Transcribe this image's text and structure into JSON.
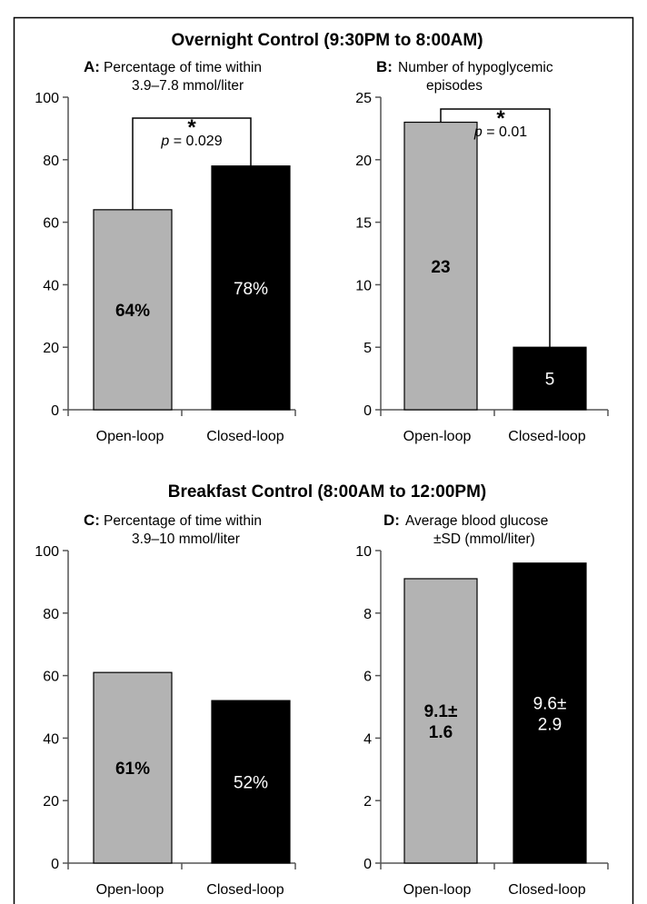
{
  "sections": [
    {
      "title": "Overnight Control (9:30PM to 8:00AM)"
    },
    {
      "title": "Breakfast Control (8:00AM to 12:00PM)"
    }
  ],
  "colors": {
    "open_loop": "#b3b3b3",
    "closed_loop": "#000000",
    "axis": "#555555",
    "border": "#000000"
  },
  "chart_data": [
    {
      "id": "A",
      "type": "bar",
      "letter": "A:",
      "title_lines": [
        "Percentage of time within",
        "3.9–7.8 mmol/liter"
      ],
      "categories": [
        "Open-loop",
        "Closed-loop"
      ],
      "values": [
        64,
        78
      ],
      "data_labels": [
        [
          "64%"
        ],
        [
          "78%"
        ]
      ],
      "ylim": [
        0,
        100
      ],
      "yticks": [
        0,
        20,
        40,
        60,
        80,
        100
      ],
      "significance": {
        "star": "*",
        "p_label": "p",
        "p_text": " = 0.029"
      }
    },
    {
      "id": "B",
      "type": "bar",
      "letter": "B:",
      "title_lines": [
        "Number of hypoglycemic",
        "episodes"
      ],
      "categories": [
        "Open-loop",
        "Closed-loop"
      ],
      "values": [
        23,
        5
      ],
      "data_labels": [
        [
          "23"
        ],
        [
          "5"
        ]
      ],
      "ylim": [
        0,
        25
      ],
      "yticks": [
        0,
        5,
        10,
        15,
        20,
        25
      ],
      "significance": {
        "star": "*",
        "p_label": "p",
        "p_text": " = 0.01"
      }
    },
    {
      "id": "C",
      "type": "bar",
      "letter": "C:",
      "title_lines": [
        "Percentage of time within",
        "3.9–10 mmol/liter"
      ],
      "categories": [
        "Open-loop",
        "Closed-loop"
      ],
      "values": [
        61,
        52
      ],
      "data_labels": [
        [
          "61%"
        ],
        [
          "52%"
        ]
      ],
      "ylim": [
        0,
        100
      ],
      "yticks": [
        0,
        20,
        40,
        60,
        80,
        100
      ]
    },
    {
      "id": "D",
      "type": "bar",
      "letter": "D:",
      "title_lines": [
        "Average blood glucose",
        "±SD (mmol/liter)"
      ],
      "categories": [
        "Open-loop",
        "Closed-loop"
      ],
      "values": [
        9.1,
        9.6
      ],
      "data_labels": [
        [
          "9.1±",
          "1.6"
        ],
        [
          "9.6±",
          "2.9"
        ]
      ],
      "ylim": [
        0,
        10
      ],
      "yticks": [
        0,
        2,
        4,
        6,
        8,
        10
      ]
    }
  ]
}
